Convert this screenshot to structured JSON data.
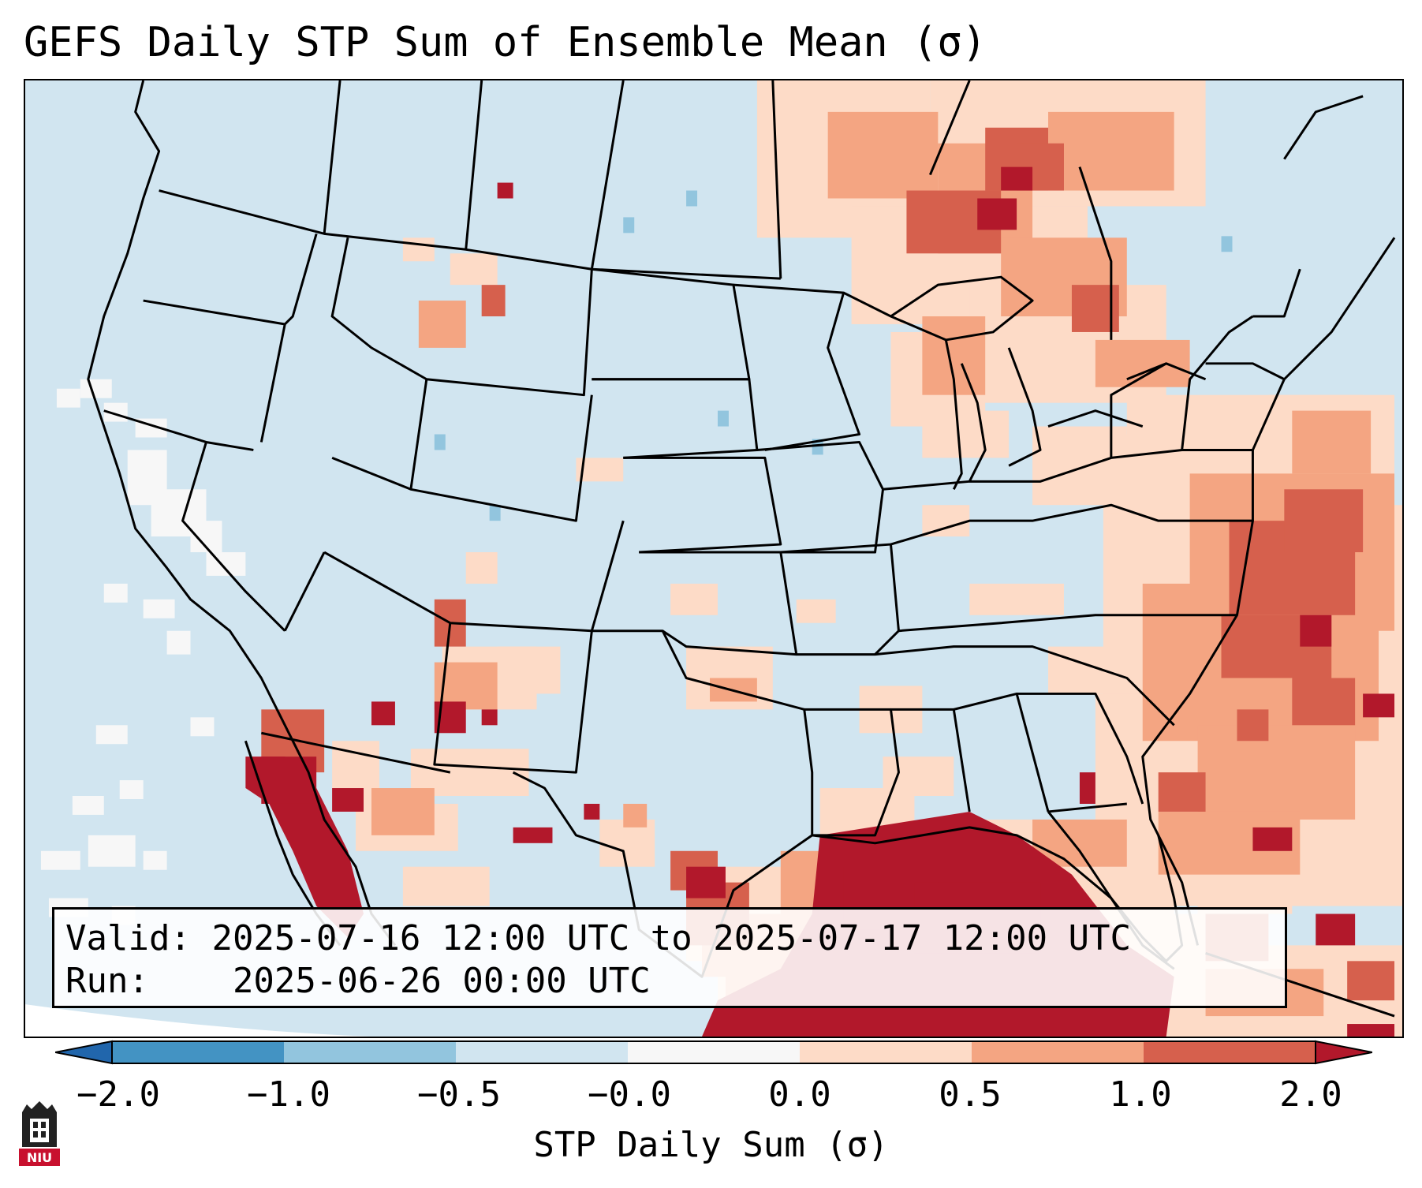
{
  "title": "GEFS Daily STP Sum of Ensemble Mean (σ)",
  "info": {
    "valid_label": "Valid:",
    "valid_value": "2025-07-16 12:00 UTC to 2025-07-17 12:00 UTC",
    "run_label": "Run:",
    "run_value": "2025-06-26 00:00 UTC"
  },
  "colorbar": {
    "label": "STP Daily Sum (σ)",
    "ticks": [
      "−2.0",
      "−1.0",
      "−0.5",
      "−0.0",
      "0.0",
      "0.5",
      "1.0",
      "2.0"
    ],
    "colors": [
      "#2166ac",
      "#4393c3",
      "#92c5de",
      "#d1e5f0",
      "#f7f7f7",
      "#fddbc7",
      "#f4a582",
      "#d6604d",
      "#b2182b"
    ],
    "extend": "both"
  },
  "map": {
    "region": "Continental United States",
    "background_color": "#d1e5f0",
    "anomaly_colors": {
      "light_positive": "#fddbc7",
      "medium_positive": "#f4a582",
      "strong_positive": "#d6604d",
      "extreme_positive": "#b2182b",
      "slight_negative": "#92c5de",
      "near_zero": "#f7f7f7"
    }
  },
  "logo": {
    "text": "NIU",
    "color": "#c8102e"
  }
}
